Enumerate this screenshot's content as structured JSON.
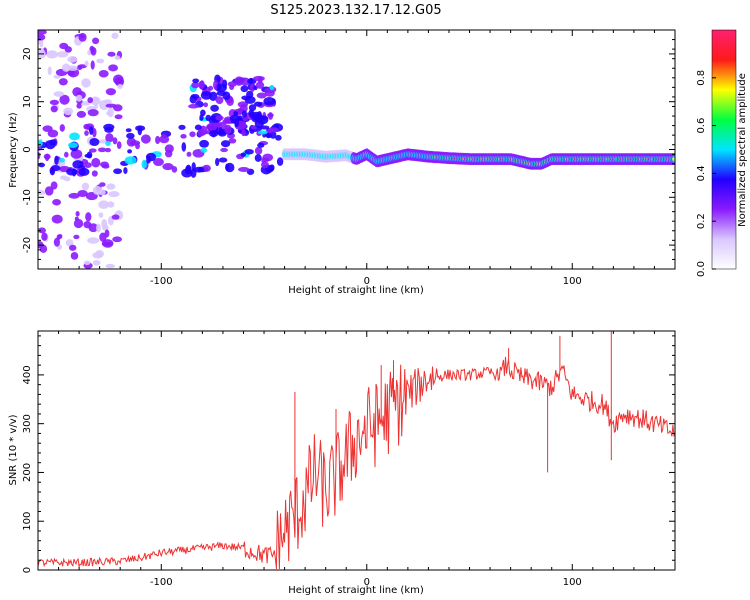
{
  "figure": {
    "title": "S125.2023.132.17.12.G05"
  },
  "chart_data": [
    {
      "id": "spectrogram",
      "type": "heatmap",
      "title": "S125.2023.132.17.12.G05",
      "xlabel": "Height of straight line (km)",
      "ylabel": "Frequency (Hz)",
      "xlim": [
        -160,
        150
      ],
      "ylim": [
        -25,
        25
      ],
      "x_ticks": [
        -100,
        0,
        100
      ],
      "y_ticks": [
        -20,
        -10,
        0,
        10,
        20
      ],
      "grid": false,
      "colorbar": {
        "label": "Normalized spectral amplitude",
        "range": [
          0.0,
          1.0
        ],
        "ticks": [
          0.0,
          0.2,
          0.4,
          0.6,
          0.8
        ],
        "colors": [
          "#ffffff",
          "#d9c7ff",
          "#8a1aff",
          "#2200ff",
          "#00e5ff",
          "#00ff40",
          "#ffff00",
          "#ff1a1a",
          "#ff2070"
        ]
      },
      "ridge": {
        "x": [
          -40,
          -30,
          -20,
          -10,
          -5,
          0,
          5,
          10,
          20,
          30,
          40,
          50,
          60,
          70,
          75,
          80,
          85,
          90,
          100,
          110,
          120,
          130,
          140,
          150
        ],
        "frequency_hz": [
          -1,
          -1,
          -1.5,
          -1.2,
          -2,
          -1,
          -2.5,
          -2,
          -1,
          -1.5,
          -1.8,
          -2,
          -2,
          -2,
          -2.5,
          -3,
          -3,
          -2,
          -2,
          -2,
          -2,
          -2,
          -2,
          -2
        ]
      },
      "scatter_regions": [
        {
          "x_range": [
            -160,
            -120
          ],
          "freq_range": [
            -25,
            25
          ],
          "level": "low"
        },
        {
          "x_range": [
            -160,
            -40
          ],
          "freq_range": [
            -5,
            5
          ],
          "level": "medium"
        },
        {
          "x_range": [
            -85,
            -45
          ],
          "freq_range": [
            3,
            15
          ],
          "level": "medium"
        }
      ]
    },
    {
      "id": "snr",
      "type": "line",
      "xlabel": "Height of straight line (km)",
      "ylabel": "SNR (10 * v/v)",
      "xlim": [
        -160,
        150
      ],
      "ylim": [
        0,
        490
      ],
      "x_ticks": [
        -100,
        0,
        100
      ],
      "y_ticks": [
        0,
        100,
        200,
        300,
        400
      ],
      "grid": false,
      "color": "#ee3333",
      "x": [
        -160,
        -140,
        -120,
        -110,
        -100,
        -90,
        -80,
        -70,
        -60,
        -50,
        -45,
        -40,
        -35,
        -30,
        -25,
        -20,
        -15,
        -10,
        -5,
        0,
        5,
        10,
        15,
        20,
        30,
        40,
        50,
        60,
        65,
        68,
        70,
        75,
        80,
        90,
        95,
        100,
        110,
        115,
        120,
        125,
        130,
        140,
        150
      ],
      "y": [
        15,
        15,
        18,
        25,
        35,
        40,
        45,
        50,
        45,
        30,
        30,
        80,
        110,
        150,
        200,
        160,
        190,
        230,
        270,
        290,
        300,
        320,
        340,
        360,
        395,
        400,
        400,
        405,
        400,
        420,
        410,
        395,
        390,
        375,
        410,
        360,
        345,
        340,
        300,
        320,
        315,
        300,
        280
      ],
      "spikes": [
        {
          "x": -35,
          "y": 365
        },
        {
          "x": -15,
          "y": 330
        },
        {
          "x": 7,
          "y": 420
        },
        {
          "x": 13,
          "y": 430
        },
        {
          "x": 69,
          "y": 455
        },
        {
          "x": 88,
          "y": 200
        },
        {
          "x": 94,
          "y": 480
        },
        {
          "x": 119,
          "y": 490
        },
        {
          "x": 119,
          "y": 225
        }
      ]
    }
  ]
}
